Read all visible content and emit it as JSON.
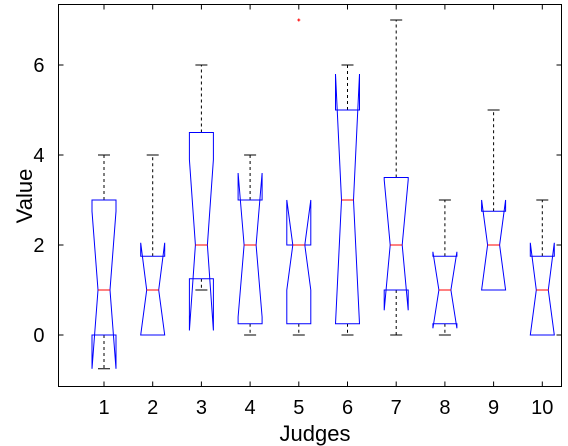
{
  "chart_data": {
    "type": "boxplot",
    "notched": true,
    "xlabel": "Judges",
    "ylabel": "Value",
    "categories": [
      "1",
      "2",
      "3",
      "4",
      "5",
      "6",
      "7",
      "8",
      "9",
      "10"
    ],
    "yticks": [
      0,
      2,
      4,
      6
    ],
    "ylim": [
      -1.4,
      7.2
    ],
    "grid": false,
    "colors": {
      "box": "#0000ff",
      "median": "#ff0000",
      "whisker": "#000000",
      "outlier": "#ff0000"
    },
    "boxes": [
      {
        "category": "1",
        "whisker_low": -0.75,
        "q1": 0,
        "notch_low": -0.75,
        "median": 1,
        "notch_high": 2.75,
        "q3": 3,
        "whisker_high": 4,
        "outliers": []
      },
      {
        "category": "2",
        "whisker_low": 0,
        "q1": 0,
        "notch_low": 0,
        "median": 1,
        "notch_high": 2.05,
        "q3": 1.75,
        "whisker_high": 4,
        "outliers": []
      },
      {
        "category": "3",
        "whisker_low": 1,
        "q1": 1.25,
        "notch_low": 0.1,
        "median": 2,
        "notch_high": 3.9,
        "q3": 4.5,
        "whisker_high": 6,
        "outliers": []
      },
      {
        "category": "4",
        "whisker_low": 0,
        "q1": 0.25,
        "notch_low": 0.4,
        "median": 2,
        "notch_high": 3.6,
        "q3": 3,
        "whisker_high": 4,
        "outliers": []
      },
      {
        "category": "5",
        "whisker_low": 0,
        "q1": 0.25,
        "notch_low": 1,
        "median": 2,
        "notch_high": 3,
        "q3": 2,
        "whisker_high": 2,
        "outliers": [
          7
        ]
      },
      {
        "category": "6",
        "whisker_low": 0,
        "q1": 0.25,
        "notch_low": 0.25,
        "median": 3,
        "notch_high": 5.8,
        "q3": 5,
        "whisker_high": 6,
        "outliers": []
      },
      {
        "category": "7",
        "whisker_low": 0,
        "q1": 1,
        "notch_low": 0.55,
        "median": 2,
        "notch_high": 3.45,
        "q3": 3.5,
        "whisker_high": 7,
        "outliers": []
      },
      {
        "category": "8",
        "whisker_low": 0,
        "q1": 0.25,
        "notch_low": 0.15,
        "median": 1,
        "notch_high": 1.85,
        "q3": 1.75,
        "whisker_high": 3,
        "outliers": []
      },
      {
        "category": "9",
        "whisker_low": 1,
        "q1": 1,
        "notch_low": 1,
        "median": 2,
        "notch_high": 3,
        "q3": 2.75,
        "whisker_high": 5,
        "outliers": []
      },
      {
        "category": "10",
        "whisker_low": 0,
        "q1": 0,
        "notch_low": 0,
        "median": 1,
        "notch_high": 2.05,
        "q3": 1.75,
        "whisker_high": 3,
        "outliers": []
      }
    ]
  }
}
